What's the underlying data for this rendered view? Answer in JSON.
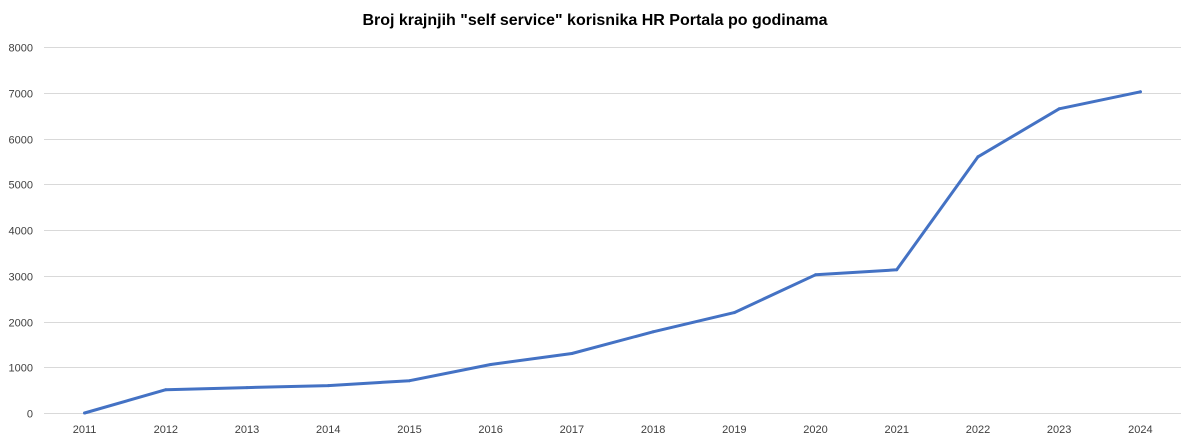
{
  "chart_data": {
    "type": "line",
    "title": "Broj  krajnjih \"self service\" korisnika HR Portala po godinama",
    "xlabel": "",
    "ylabel": "",
    "categories": [
      "2011",
      "2012",
      "2013",
      "2014",
      "2015",
      "2016",
      "2017",
      "2018",
      "2019",
      "2020",
      "2021",
      "2022",
      "2023",
      "2024"
    ],
    "series": [
      {
        "values": [
          0,
          510,
          555,
          600,
          705,
          1060,
          1300,
          1775,
          2195,
          3020,
          3130,
          5600,
          6650,
          7020
        ],
        "color": "#4472c4"
      }
    ],
    "ylim": [
      0,
      8000
    ],
    "yticks": [
      "0",
      "1000",
      "2000",
      "3000",
      "4000",
      "5000",
      "6000",
      "7000",
      "8000"
    ],
    "grid": true,
    "legend": "none"
  }
}
